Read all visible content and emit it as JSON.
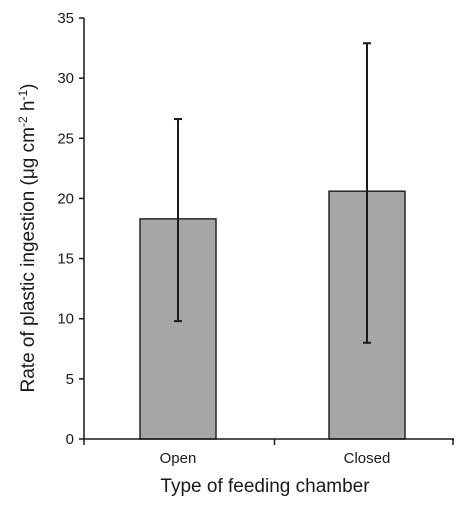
{
  "chart_data": {
    "type": "bar",
    "title": "",
    "categories": [
      "Open",
      "Closed"
    ],
    "values": [
      18.3,
      20.6
    ],
    "error_low": [
      9.8,
      8.0
    ],
    "error_high": [
      26.6,
      32.9
    ],
    "xlabel": "Type of feeding chamber",
    "ylabel_main": "Rate of plastic ingestion (μg cm",
    "ylabel_sup1": "-2",
    "ylabel_mid": " h",
    "ylabel_sup2": "-1",
    "ylabel_end": ")",
    "ylim": [
      0,
      35
    ],
    "yticks": [
      0,
      5,
      10,
      15,
      20,
      25,
      30,
      35
    ],
    "grid": false,
    "legend": "none",
    "bar_color": "#a6a6a6",
    "bar_edge_color": "#262626",
    "error_bar_color": "#1a1a1a"
  }
}
